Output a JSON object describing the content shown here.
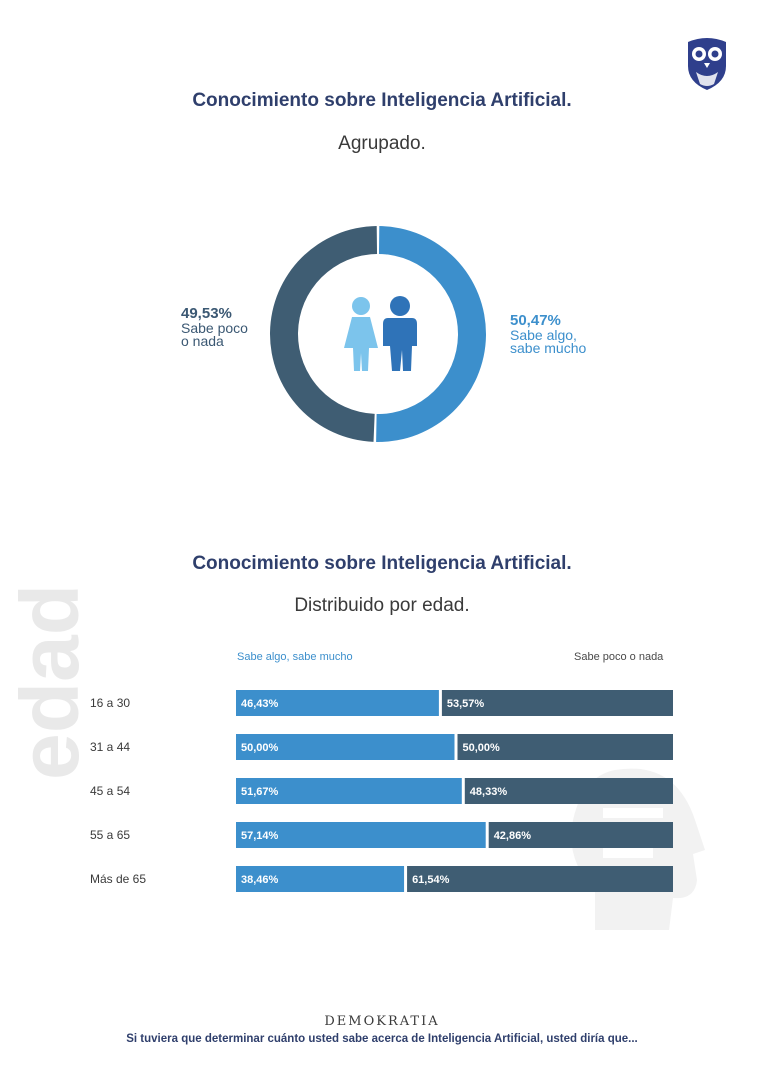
{
  "section1": {
    "title": "Conocimiento sobre Inteligencia Artificial.",
    "subtitle": "Agrupado."
  },
  "donut_labels": {
    "left_pct": "49,53%",
    "left_line1": "Sabe poco",
    "left_line2": "o nada",
    "right_pct": "50,47%",
    "right_line1": "Sabe algo,",
    "right_line2": "sabe mucho"
  },
  "section2": {
    "title": "Conocimiento sobre Inteligencia Artificial.",
    "subtitle": "Distribuido por edad.",
    "watermark": "edad"
  },
  "legend": {
    "left": "Sabe algo, sabe mucho",
    "right": "Sabe poco o nada"
  },
  "footer": {
    "brand": "DEMOKRATIA",
    "question": "Si tuviera que determinar cuánto usted sabe acerca de Inteligencia Artificial, usted diría que..."
  },
  "colors": {
    "light_blue": "#3c8fcc",
    "dark_slate": "#3f5d73",
    "title_navy": "#2f3f6c",
    "figure_light": "#7cc4ec",
    "figure_dark": "#2f73b8"
  },
  "icons": {
    "logo": "owl-logo-icon",
    "center": "woman-man-figures-icon",
    "watermark": "head-profile-icon"
  },
  "chart_data": [
    {
      "type": "pie",
      "categories": [
        "Sabe poco o nada",
        "Sabe algo, sabe mucho"
      ],
      "values": [
        49.53,
        50.47
      ],
      "labels": [
        "49,53%",
        "50,47%"
      ],
      "colors": [
        "#3f5d73",
        "#3c8fcc"
      ]
    },
    {
      "type": "bar",
      "orientation": "horizontal",
      "stacked": true,
      "categories": [
        "16 a 30",
        "31 a 44",
        "45 a 54",
        "55 a 65",
        "Más de 65"
      ],
      "series": [
        {
          "name": "Sabe algo, sabe mucho",
          "values": [
            46.43,
            50.0,
            51.67,
            57.14,
            38.46
          ],
          "labels": [
            "46,43%",
            "50,00%",
            "51,67%",
            "57,14%",
            "38,46%"
          ],
          "color": "#3c8fcc"
        },
        {
          "name": "Sabe poco o nada",
          "values": [
            53.57,
            50.0,
            48.33,
            42.86,
            61.54
          ],
          "labels": [
            "53,57%",
            "50,00%",
            "48,33%",
            "42,86%",
            "61,54%"
          ],
          "color": "#3f5d73"
        }
      ],
      "xlim": [
        0,
        100
      ],
      "legend": "top"
    }
  ]
}
